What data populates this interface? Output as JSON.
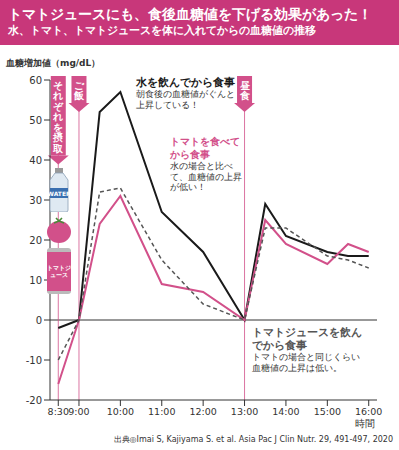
{
  "chart_data": {
    "type": "line",
    "title": "トマトジュースにも、食後血糖値を下げる効果があった！",
    "subtitle": "水、トマト、トマトジュースを体に入れてからの血糖値の推移",
    "y_label": "血糖増加値（mg/dL）",
    "x_label": "時間",
    "source": "出典◎Imai S, Kajiyama S. et al. Asia Pac J Clin Nutr. 29, 491-497, 2020",
    "x": [
      8.5,
      9,
      9.5,
      10,
      11,
      12,
      13,
      13.5,
      14,
      15,
      15.5,
      16
    ],
    "series": [
      {
        "name": "水を飲んでから食事",
        "color": "#1a1a1a",
        "line_style": "solid",
        "marker": "none",
        "values": [
          -2,
          0,
          52,
          57,
          27,
          17,
          0,
          29,
          21,
          17,
          16,
          16
        ]
      },
      {
        "name": "トマトを食べてから食事",
        "color": "#d2508a",
        "line_style": "solid",
        "marker": "none",
        "values": [
          -16,
          0,
          24,
          31,
          9,
          7,
          0,
          25,
          19,
          14,
          19,
          17
        ]
      },
      {
        "name": "トマトジュースを飲んでから食事",
        "color": "#555555",
        "line_style": "dashed",
        "marker": "none",
        "values": [
          -10,
          0,
          32,
          33,
          15,
          4,
          0,
          23,
          23,
          16,
          15,
          13
        ]
      }
    ],
    "annotations": [
      "朝食後の血糖値がぐんと上昇している！",
      "水の場合と比べて、血糖値の上昇が低い！",
      "トマトの場合と同じくらい血糖値の上昇は低い。"
    ],
    "events": [
      {
        "label": "それぞれを摂取",
        "x": 8.5
      },
      {
        "label": "ご飯",
        "x": 9
      },
      {
        "label": "昼食",
        "x": 13
      }
    ],
    "icon_labels": [
      "WATER",
      "トマトジュース"
    ],
    "hlines": [
      0
    ],
    "xlim": [
      8.3,
      16.2
    ],
    "xticks": [
      {
        "value": 8.5,
        "label": "8:30"
      },
      {
        "value": 9,
        "label": "9:00"
      },
      {
        "value": 10,
        "label": "10:00"
      },
      {
        "value": 11,
        "label": "11:00"
      },
      {
        "value": 12,
        "label": "12:00"
      },
      {
        "value": 13,
        "label": "13:00"
      },
      {
        "value": 14,
        "label": "14:00"
      },
      {
        "value": 15,
        "label": "15:00"
      },
      {
        "value": 16,
        "label": "16:00"
      }
    ],
    "ylim": [
      -20,
      60
    ],
    "yticks": [
      -20,
      -10,
      0,
      10,
      20,
      30,
      40,
      50,
      60
    ],
    "grid": false
  }
}
